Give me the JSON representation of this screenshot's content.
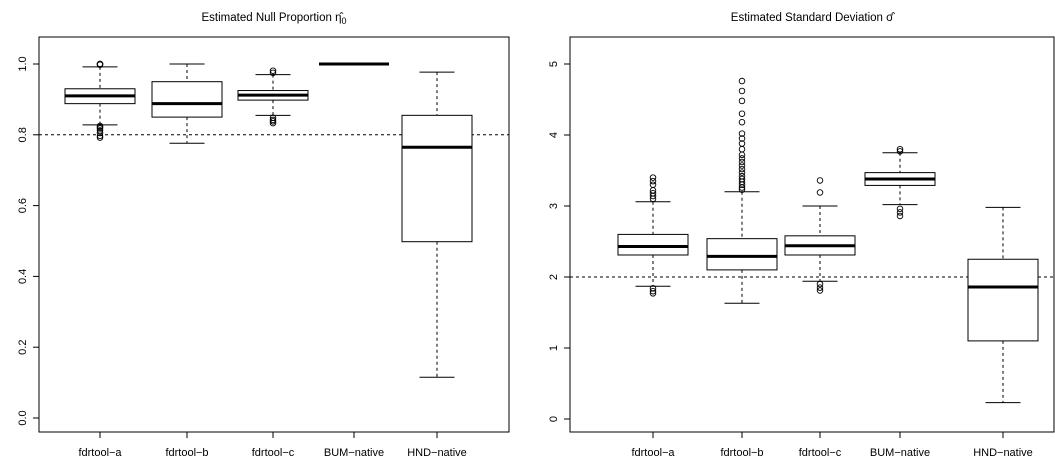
{
  "chart_data": [
    {
      "type": "boxplot",
      "title": "Estimated Null Proportion η̂",
      "title_subscript": "0",
      "categories": [
        "fdrtool−a",
        "fdrtool−b",
        "fdrtool−c",
        "BUM−native",
        "HND−native"
      ],
      "ylim": [
        0.0,
        1.0
      ],
      "yticks": [
        0.0,
        0.2,
        0.4,
        0.6,
        0.8,
        1.0
      ],
      "ytick_labels": [
        "0.0",
        "0.2",
        "0.4",
        "0.6",
        "0.8",
        "1.0"
      ],
      "reference_line": 0.8,
      "grid": false,
      "boxes": [
        {
          "whisker_low": 0.828,
          "q1": 0.888,
          "median": 0.91,
          "q3": 0.93,
          "whisker_high": 0.992,
          "outliers": [
            0.792,
            0.797,
            0.805,
            0.812,
            0.818,
            0.822,
            0.825,
            0.998,
            1.0,
            1.0
          ]
        },
        {
          "whisker_low": 0.776,
          "q1": 0.85,
          "median": 0.888,
          "q3": 0.95,
          "whisker_high": 1.0,
          "outliers": []
        },
        {
          "whisker_low": 0.855,
          "q1": 0.898,
          "median": 0.912,
          "q3": 0.925,
          "whisker_high": 0.97,
          "outliers": [
            0.833,
            0.838,
            0.842,
            0.848,
            0.975,
            0.981
          ]
        },
        {
          "whisker_low": 1.0,
          "q1": 1.0,
          "median": 1.0,
          "q3": 1.0,
          "whisker_high": 1.0,
          "outliers": []
        },
        {
          "whisker_low": 0.115,
          "q1": 0.498,
          "median": 0.765,
          "q3": 0.855,
          "whisker_high": 0.977,
          "outliers": []
        }
      ]
    },
    {
      "type": "boxplot",
      "title": "Estimated Standard Deviation σ̂",
      "categories": [
        "fdrtool−a",
        "fdrtool−b",
        "fdrtool−c",
        "BUM−native",
        "HND−native"
      ],
      "ylim": [
        0,
        5
      ],
      "yticks": [
        0,
        1,
        2,
        3,
        4,
        5
      ],
      "ytick_labels": [
        "0",
        "1",
        "2",
        "3",
        "4",
        "5"
      ],
      "reference_line": 2,
      "grid": false,
      "boxes": [
        {
          "whisker_low": 1.87,
          "q1": 2.31,
          "median": 2.43,
          "q3": 2.6,
          "whisker_high": 3.06,
          "outliers": [
            1.77,
            1.8,
            1.84,
            3.1,
            3.14,
            3.18,
            3.22,
            3.3,
            3.35,
            3.4
          ]
        },
        {
          "whisker_low": 1.63,
          "q1": 2.1,
          "median": 2.29,
          "q3": 2.54,
          "whisker_high": 3.2,
          "outliers": [
            3.23,
            3.26,
            3.3,
            3.34,
            3.38,
            3.42,
            3.47,
            3.52,
            3.57,
            3.62,
            3.67,
            3.72,
            3.8,
            3.88,
            3.95,
            4.02,
            4.18,
            4.3,
            4.48,
            4.62,
            4.76
          ]
        },
        {
          "whisker_low": 1.94,
          "q1": 2.31,
          "median": 2.44,
          "q3": 2.58,
          "whisker_high": 3.0,
          "outliers": [
            1.81,
            1.85,
            1.9,
            3.19,
            3.36
          ]
        },
        {
          "whisker_low": 3.02,
          "q1": 3.29,
          "median": 3.38,
          "q3": 3.47,
          "whisker_high": 3.75,
          "outliers": [
            2.86,
            2.91,
            2.96,
            3.77,
            3.8
          ]
        },
        {
          "whisker_low": 0.23,
          "q1": 1.1,
          "median": 1.86,
          "q3": 2.25,
          "whisker_high": 2.98,
          "outliers": []
        }
      ]
    }
  ]
}
